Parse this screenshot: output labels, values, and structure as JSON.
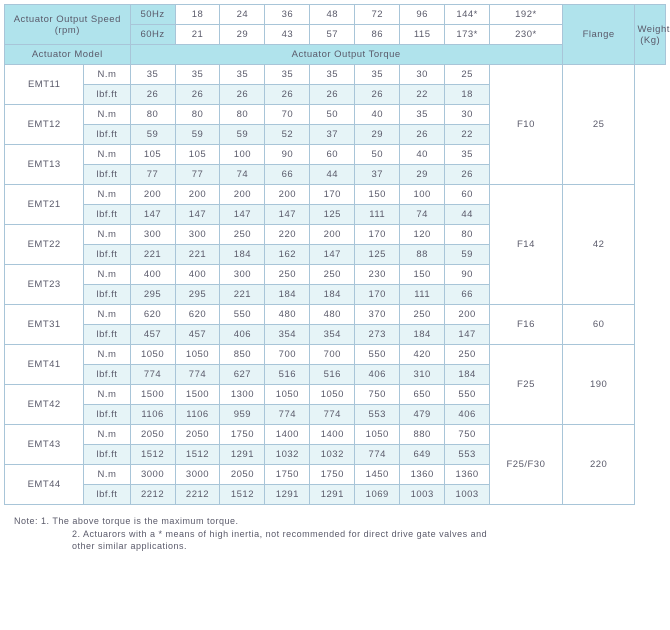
{
  "header": {
    "speedLabel": "Actuator Output Speed (rpm)",
    "hz50": "50Hz",
    "hz60": "60Hz",
    "hz50vals": [
      "18",
      "24",
      "36",
      "48",
      "72",
      "96",
      "144*",
      "192*"
    ],
    "hz60vals": [
      "21",
      "29",
      "43",
      "57",
      "86",
      "115",
      "173*",
      "230*"
    ],
    "modelLabel": "Actuator Model",
    "torqueLabel": "Actuator Output Torque",
    "flange": "Flange",
    "weight": "Weight (Kg)"
  },
  "unitNm": "N.m",
  "unitLbf": "lbf.ft",
  "groups": [
    {
      "flange": "F10",
      "weight": "25",
      "rows": [
        {
          "model": "EMT11",
          "nm": [
            "35",
            "35",
            "35",
            "35",
            "35",
            "35",
            "30",
            "25"
          ],
          "lbf": [
            "26",
            "26",
            "26",
            "26",
            "26",
            "26",
            "22",
            "18"
          ]
        },
        {
          "model": "EMT12",
          "nm": [
            "80",
            "80",
            "80",
            "70",
            "50",
            "40",
            "35",
            "30"
          ],
          "lbf": [
            "59",
            "59",
            "59",
            "52",
            "37",
            "29",
            "26",
            "22"
          ]
        },
        {
          "model": "EMT13",
          "nm": [
            "105",
            "105",
            "100",
            "90",
            "60",
            "50",
            "40",
            "35"
          ],
          "lbf": [
            "77",
            "77",
            "74",
            "66",
            "44",
            "37",
            "29",
            "26"
          ]
        }
      ]
    },
    {
      "flange": "F14",
      "weight": "42",
      "rows": [
        {
          "model": "EMT21",
          "nm": [
            "200",
            "200",
            "200",
            "200",
            "170",
            "150",
            "100",
            "60"
          ],
          "lbf": [
            "147",
            "147",
            "147",
            "147",
            "125",
            "111",
            "74",
            "44"
          ]
        },
        {
          "model": "EMT22",
          "nm": [
            "300",
            "300",
            "250",
            "220",
            "200",
            "170",
            "120",
            "80"
          ],
          "lbf": [
            "221",
            "221",
            "184",
            "162",
            "147",
            "125",
            "88",
            "59"
          ]
        },
        {
          "model": "EMT23",
          "nm": [
            "400",
            "400",
            "300",
            "250",
            "250",
            "230",
            "150",
            "90"
          ],
          "lbf": [
            "295",
            "295",
            "221",
            "184",
            "184",
            "170",
            "111",
            "66"
          ]
        }
      ]
    },
    {
      "flange": "F16",
      "weight": "60",
      "rows": [
        {
          "model": "EMT31",
          "nm": [
            "620",
            "620",
            "550",
            "480",
            "480",
            "370",
            "250",
            "200"
          ],
          "lbf": [
            "457",
            "457",
            "406",
            "354",
            "354",
            "273",
            "184",
            "147"
          ]
        }
      ]
    },
    {
      "flange": "F25",
      "weight": "190",
      "rows": [
        {
          "model": "EMT41",
          "nm": [
            "1050",
            "1050",
            "850",
            "700",
            "700",
            "550",
            "420",
            "250"
          ],
          "lbf": [
            "774",
            "774",
            "627",
            "516",
            "516",
            "406",
            "310",
            "184"
          ]
        },
        {
          "model": "EMT42",
          "nm": [
            "1500",
            "1500",
            "1300",
            "1050",
            "1050",
            "750",
            "650",
            "550"
          ],
          "lbf": [
            "1106",
            "1106",
            "959",
            "774",
            "774",
            "553",
            "479",
            "406"
          ]
        }
      ]
    },
    {
      "flange": "F25/F30",
      "weight": "220",
      "rows": [
        {
          "model": "EMT43",
          "nm": [
            "2050",
            "2050",
            "1750",
            "1400",
            "1400",
            "1050",
            "880",
            "750"
          ],
          "lbf": [
            "1512",
            "1512",
            "1291",
            "1032",
            "1032",
            "774",
            "649",
            "553"
          ]
        },
        {
          "model": "EMT44",
          "nm": [
            "3000",
            "3000",
            "2050",
            "1750",
            "1750",
            "1450",
            "1360",
            "1360"
          ],
          "lbf": [
            "2212",
            "2212",
            "1512",
            "1291",
            "1291",
            "1069",
            "1003",
            "1003"
          ]
        }
      ]
    }
  ],
  "notes": {
    "prefix": "Note:",
    "n1": "1. The above torque is the maximum torque.",
    "n2": "2. Actuarors with a * means of high inertia, not recommended for direct drive gate valves and",
    "n2b": "other similar applications."
  }
}
